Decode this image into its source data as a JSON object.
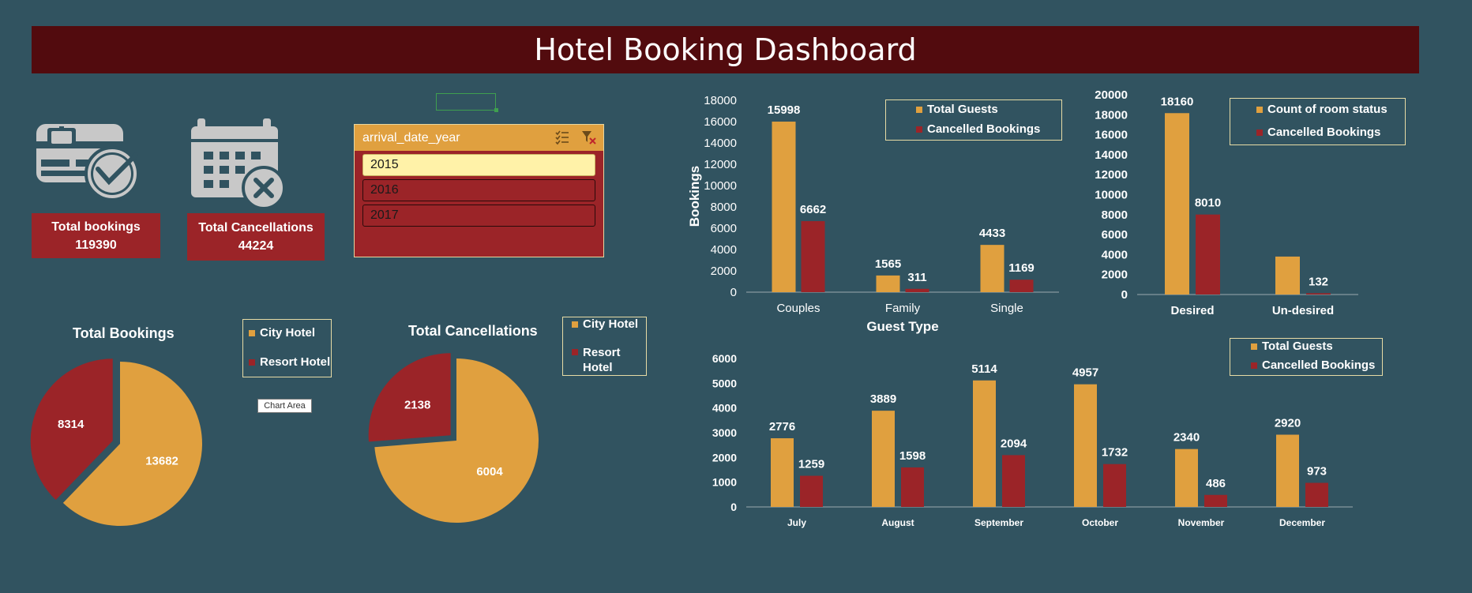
{
  "title": "Hotel Booking Dashboard",
  "colors": {
    "city": "#e0a03f",
    "resort": "#9b2428",
    "background": "#315360",
    "title_bar": "#520b0e"
  },
  "kpis": {
    "total_bookings_label": "Total bookings",
    "total_bookings_value": "119390",
    "total_cancellations_label": "Total Cancellations",
    "total_cancellations_value": "44224",
    "bookings_icon": "id-card-check-icon",
    "cancellations_icon": "calendar-x-icon"
  },
  "slicer": {
    "title": "arrival_date_year",
    "items": [
      {
        "label": "2015",
        "selected": true
      },
      {
        "label": "2016",
        "selected": false
      },
      {
        "label": "2017",
        "selected": false
      }
    ]
  },
  "pie_legend": {
    "city": "City Hotel",
    "resort": "Resort Hotel"
  },
  "tooltip": "Chart Area",
  "chart_data": [
    {
      "type": "pie",
      "title": "Total Bookings",
      "categories": [
        "City Hotel",
        "Resort Hotel"
      ],
      "values": [
        13682,
        8314
      ]
    },
    {
      "type": "pie",
      "title": "Total Cancellations",
      "categories": [
        "City Hotel",
        "Resort Hotel"
      ],
      "values": [
        6004,
        2138
      ]
    },
    {
      "type": "bar",
      "title": "",
      "xlabel": "Guest Type",
      "ylabel": "Bookings",
      "categories": [
        "Couples",
        "Family",
        "Single"
      ],
      "series": [
        {
          "name": "Total Guests",
          "values": [
            15998,
            1565,
            4433
          ]
        },
        {
          "name": "Cancelled Bookings",
          "values": [
            6662,
            311,
            1169
          ]
        }
      ],
      "ylim": [
        0,
        18000
      ],
      "yticks": [
        0,
        2000,
        4000,
        6000,
        8000,
        10000,
        12000,
        14000,
        16000,
        18000
      ],
      "legend": "top-right",
      "grid": false
    },
    {
      "type": "bar",
      "title": "",
      "xlabel": "",
      "ylabel": "",
      "categories": [
        "Desired",
        "Un-desired"
      ],
      "series": [
        {
          "name": "Count of room status",
          "values": [
            18160,
            3800
          ]
        },
        {
          "name": "Cancelled Bookings",
          "values": [
            8010,
            132
          ]
        }
      ],
      "data_labels": [
        [
          "18160",
          ""
        ],
        [
          "8010",
          "132"
        ]
      ],
      "ylim": [
        0,
        20000
      ],
      "yticks": [
        0,
        2000,
        4000,
        6000,
        8000,
        10000,
        12000,
        14000,
        16000,
        18000,
        20000
      ],
      "legend": "top-right",
      "grid": false
    },
    {
      "type": "bar",
      "title": "",
      "xlabel": "",
      "ylabel": "",
      "categories": [
        "July",
        "August",
        "September",
        "October",
        "November",
        "December"
      ],
      "series": [
        {
          "name": "Total Guests",
          "values": [
            2776,
            3889,
            5114,
            4957,
            2340,
            2920
          ]
        },
        {
          "name": "Cancelled Bookings",
          "values": [
            1259,
            1598,
            2094,
            1732,
            486,
            973
          ]
        }
      ],
      "ylim": [
        0,
        6000
      ],
      "yticks": [
        0,
        1000,
        2000,
        3000,
        4000,
        5000,
        6000
      ],
      "legend": "top-right",
      "grid": false
    }
  ]
}
